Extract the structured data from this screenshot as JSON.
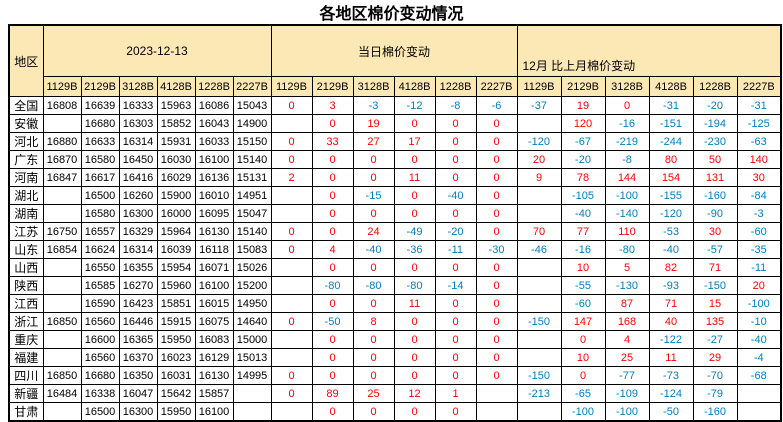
{
  "title": "各地区棉价变动情况",
  "colors": {
    "header_bg": "#FCE8B4",
    "positive": "#FF0000",
    "negative": "#0080C0",
    "border": "#000000"
  },
  "table": {
    "region_header": "地区",
    "groups": [
      {
        "label": "2023-12-13"
      },
      {
        "label": "当日棉价变动"
      },
      {
        "label": "12月 比上月棉价变动"
      }
    ],
    "subcolumns": [
      "1129B",
      "2129B",
      "3128B",
      "4128B",
      "1228B",
      "2227B"
    ],
    "rows": [
      {
        "region": "全国",
        "date_prices": [
          16808,
          16639,
          16333,
          15963,
          16086,
          15043
        ],
        "daily_change": [
          0,
          3,
          -3,
          -12,
          -8,
          -6
        ],
        "monthly_change": [
          -37,
          19,
          0,
          -31,
          -20,
          -31
        ]
      },
      {
        "region": "安徽",
        "date_prices": [
          "",
          16680,
          16303,
          15852,
          16043,
          14900
        ],
        "daily_change": [
          "",
          0,
          19,
          0,
          0,
          0
        ],
        "monthly_change": [
          "",
          120,
          -16,
          -151,
          -194,
          -125
        ]
      },
      {
        "region": "河北",
        "date_prices": [
          16880,
          16633,
          16314,
          15931,
          16033,
          15150
        ],
        "daily_change": [
          0,
          33,
          27,
          17,
          0,
          0
        ],
        "monthly_change": [
          -120,
          -67,
          -219,
          -244,
          -230,
          -63
        ]
      },
      {
        "region": "广东",
        "date_prices": [
          16870,
          16580,
          16450,
          16030,
          16100,
          15140
        ],
        "daily_change": [
          0,
          0,
          0,
          0,
          0,
          0
        ],
        "monthly_change": [
          20,
          -20,
          -8,
          80,
          50,
          140
        ]
      },
      {
        "region": "河南",
        "date_prices": [
          16847,
          16617,
          16416,
          16029,
          16136,
          15131
        ],
        "daily_change": [
          2,
          0,
          0,
          11,
          0,
          0
        ],
        "monthly_change": [
          9,
          78,
          144,
          154,
          131,
          30
        ]
      },
      {
        "region": "湖北",
        "date_prices": [
          "",
          16500,
          16260,
          15900,
          16010,
          14951
        ],
        "daily_change": [
          "",
          0,
          -15,
          0,
          -40,
          0
        ],
        "monthly_change": [
          "",
          -105,
          -100,
          -155,
          -160,
          -84
        ]
      },
      {
        "region": "湖南",
        "date_prices": [
          "",
          16580,
          16300,
          16000,
          16095,
          15047
        ],
        "daily_change": [
          "",
          0,
          0,
          0,
          0,
          0
        ],
        "monthly_change": [
          "",
          -40,
          -140,
          -120,
          -90,
          -3
        ]
      },
      {
        "region": "江苏",
        "date_prices": [
          16750,
          16557,
          16329,
          15964,
          16130,
          15140
        ],
        "daily_change": [
          0,
          0,
          24,
          -49,
          -20,
          0
        ],
        "monthly_change": [
          70,
          77,
          110,
          -53,
          30,
          -60
        ]
      },
      {
        "region": "山东",
        "date_prices": [
          16854,
          16624,
          16314,
          16039,
          16118,
          15083
        ],
        "daily_change": [
          0,
          4,
          -40,
          -36,
          -11,
          -30
        ],
        "monthly_change": [
          -46,
          -16,
          -80,
          -40,
          -57,
          -35
        ]
      },
      {
        "region": "山西",
        "date_prices": [
          "",
          16550,
          16355,
          15954,
          16071,
          15026
        ],
        "daily_change": [
          "",
          0,
          0,
          0,
          0,
          0
        ],
        "monthly_change": [
          "",
          10,
          5,
          82,
          71,
          -11
        ]
      },
      {
        "region": "陕西",
        "date_prices": [
          "",
          16585,
          16270,
          15960,
          16100,
          15200
        ],
        "daily_change": [
          "",
          -80,
          -80,
          -80,
          -14,
          0
        ],
        "monthly_change": [
          "",
          -55,
          -130,
          -93,
          -150,
          20
        ]
      },
      {
        "region": "江西",
        "date_prices": [
          "",
          16590,
          16423,
          15851,
          16015,
          14950
        ],
        "daily_change": [
          "",
          0,
          0,
          11,
          0,
          0
        ],
        "monthly_change": [
          "",
          -60,
          87,
          71,
          15,
          -100
        ]
      },
      {
        "region": "浙江",
        "date_prices": [
          16850,
          16560,
          16446,
          15915,
          16075,
          14640
        ],
        "daily_change": [
          0,
          -50,
          8,
          0,
          0,
          0
        ],
        "monthly_change": [
          -150,
          147,
          168,
          40,
          135,
          -10
        ]
      },
      {
        "region": "重庆",
        "date_prices": [
          "",
          16600,
          16365,
          15950,
          16083,
          15000
        ],
        "daily_change": [
          "",
          0,
          0,
          0,
          0,
          0
        ],
        "monthly_change": [
          "",
          0,
          4,
          -122,
          -27,
          -40
        ]
      },
      {
        "region": "福建",
        "date_prices": [
          "",
          16560,
          16370,
          16023,
          16129,
          15013
        ],
        "daily_change": [
          "",
          0,
          0,
          0,
          0,
          0
        ],
        "monthly_change": [
          "",
          10,
          25,
          11,
          29,
          -4
        ]
      },
      {
        "region": "四川",
        "date_prices": [
          16850,
          16680,
          16350,
          16031,
          16130,
          14995
        ],
        "daily_change": [
          0,
          0,
          0,
          0,
          0,
          0
        ],
        "monthly_change": [
          -150,
          0,
          -77,
          -73,
          -70,
          -68
        ]
      },
      {
        "region": "新疆",
        "date_prices": [
          16484,
          16338,
          16047,
          15642,
          15857,
          ""
        ],
        "daily_change": [
          0,
          89,
          25,
          12,
          1,
          ""
        ],
        "monthly_change": [
          -213,
          -65,
          -109,
          -124,
          -79,
          ""
        ]
      },
      {
        "region": "甘肃",
        "date_prices": [
          "",
          16500,
          16300,
          15950,
          16100,
          ""
        ],
        "daily_change": [
          "",
          0,
          0,
          0,
          0,
          ""
        ],
        "monthly_change": [
          "",
          -100,
          -100,
          -50,
          -160,
          ""
        ]
      }
    ]
  }
}
